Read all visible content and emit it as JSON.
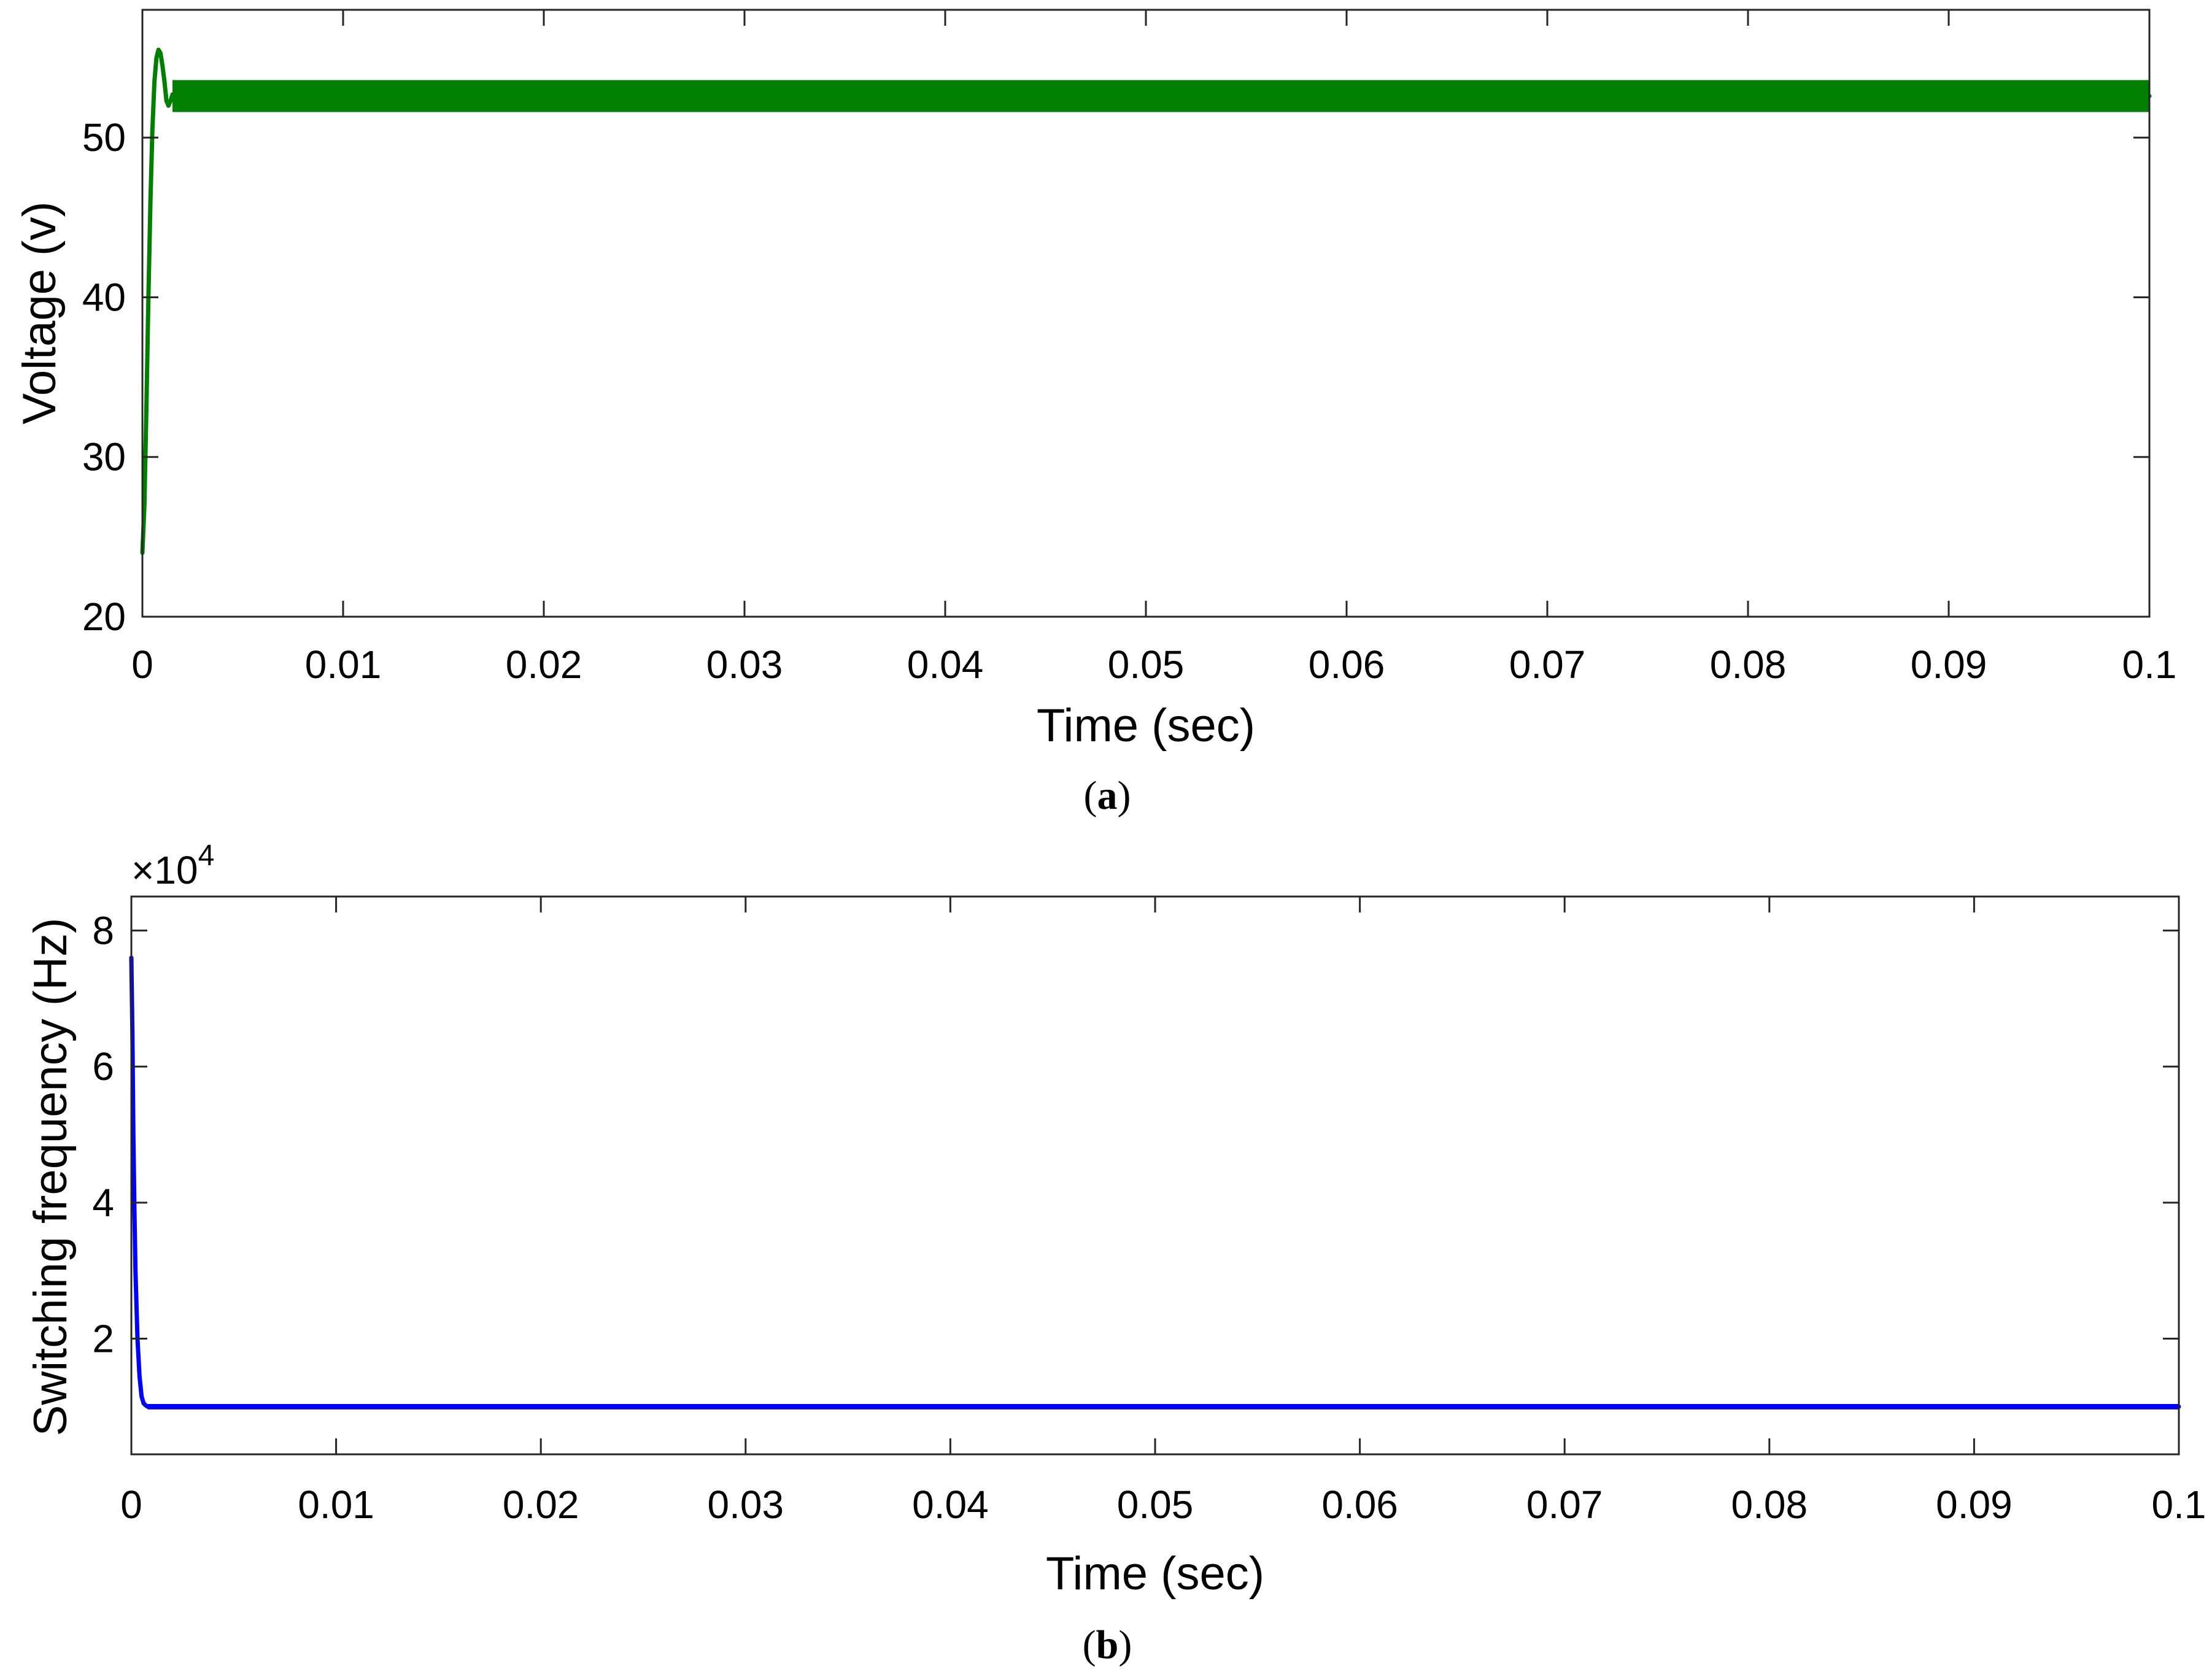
{
  "chart_data": [
    {
      "type": "line",
      "panel_label": "a",
      "title": "",
      "xlabel": "Time (sec)",
      "ylabel": "Voltage (v)",
      "xlim": [
        0,
        0.1
      ],
      "ylim": [
        20,
        58
      ],
      "x_ticks": [
        0,
        0.01,
        0.02,
        0.03,
        0.04,
        0.05,
        0.06,
        0.07,
        0.08,
        0.09,
        0.1
      ],
      "x_tick_labels": [
        "0",
        "0.01",
        "0.02",
        "0.03",
        "0.04",
        "0.05",
        "0.06",
        "0.07",
        "0.08",
        "0.09",
        "0.1"
      ],
      "y_ticks": [
        20,
        30,
        40,
        50
      ],
      "y_tick_labels": [
        "20",
        "30",
        "40",
        "50"
      ],
      "grid": false,
      "series": [
        {
          "color": "#007f00",
          "x": [
            0,
            0.0001,
            0.0002,
            0.0003,
            0.0004,
            0.0005,
            0.0006,
            0.0007,
            0.0008,
            0.0009,
            0.001,
            0.0011,
            0.0012,
            0.0013,
            0.0014,
            0.0015,
            0.0016,
            0.0018,
            0.002,
            0.1
          ],
          "y": [
            24,
            27,
            33,
            40,
            46,
            50.5,
            53.5,
            55,
            55.5,
            55.3,
            54.5,
            53.5,
            52.3,
            52,
            52.3,
            52.7,
            52.6,
            52.6,
            52.6,
            52.6
          ],
          "ripple_band": [
            51.6,
            53.6
          ],
          "ripple_start": 0.0015
        }
      ]
    },
    {
      "type": "line",
      "panel_label": "b",
      "title": "",
      "xlabel": "Time (sec)",
      "ylabel": "Switching frequency (Hz)",
      "y_multiplier": "×10",
      "y_multiplier_exponent": "4",
      "xlim": [
        0,
        0.1
      ],
      "ylim": [
        0.3,
        8.5
      ],
      "x_ticks": [
        0,
        0.01,
        0.02,
        0.03,
        0.04,
        0.05,
        0.06,
        0.07,
        0.08,
        0.09,
        0.1
      ],
      "x_tick_labels": [
        "0",
        "0.01",
        "0.02",
        "0.03",
        "0.04",
        "0.05",
        "0.06",
        "0.07",
        "0.08",
        "0.09",
        "0.1"
      ],
      "y_ticks": [
        2,
        4,
        6,
        8
      ],
      "y_tick_labels": [
        "2",
        "4",
        "6",
        "8"
      ],
      "grid": false,
      "series": [
        {
          "color": "#0000ff",
          "x": [
            0,
            5e-05,
            0.0001,
            0.00015,
            0.0002,
            0.0003,
            0.0004,
            0.0005,
            0.0006,
            0.0007,
            0.0008,
            0.001,
            0.0012,
            0.1
          ],
          "y": [
            7.6,
            6.5,
            5.0,
            3.9,
            3.0,
            2.0,
            1.45,
            1.15,
            1.05,
            1.02,
            1.0,
            1.0,
            1.0,
            1.0
          ],
          "ripple_band": [
            0.96,
            1.04
          ],
          "ripple_start": 0.0008
        }
      ]
    }
  ]
}
